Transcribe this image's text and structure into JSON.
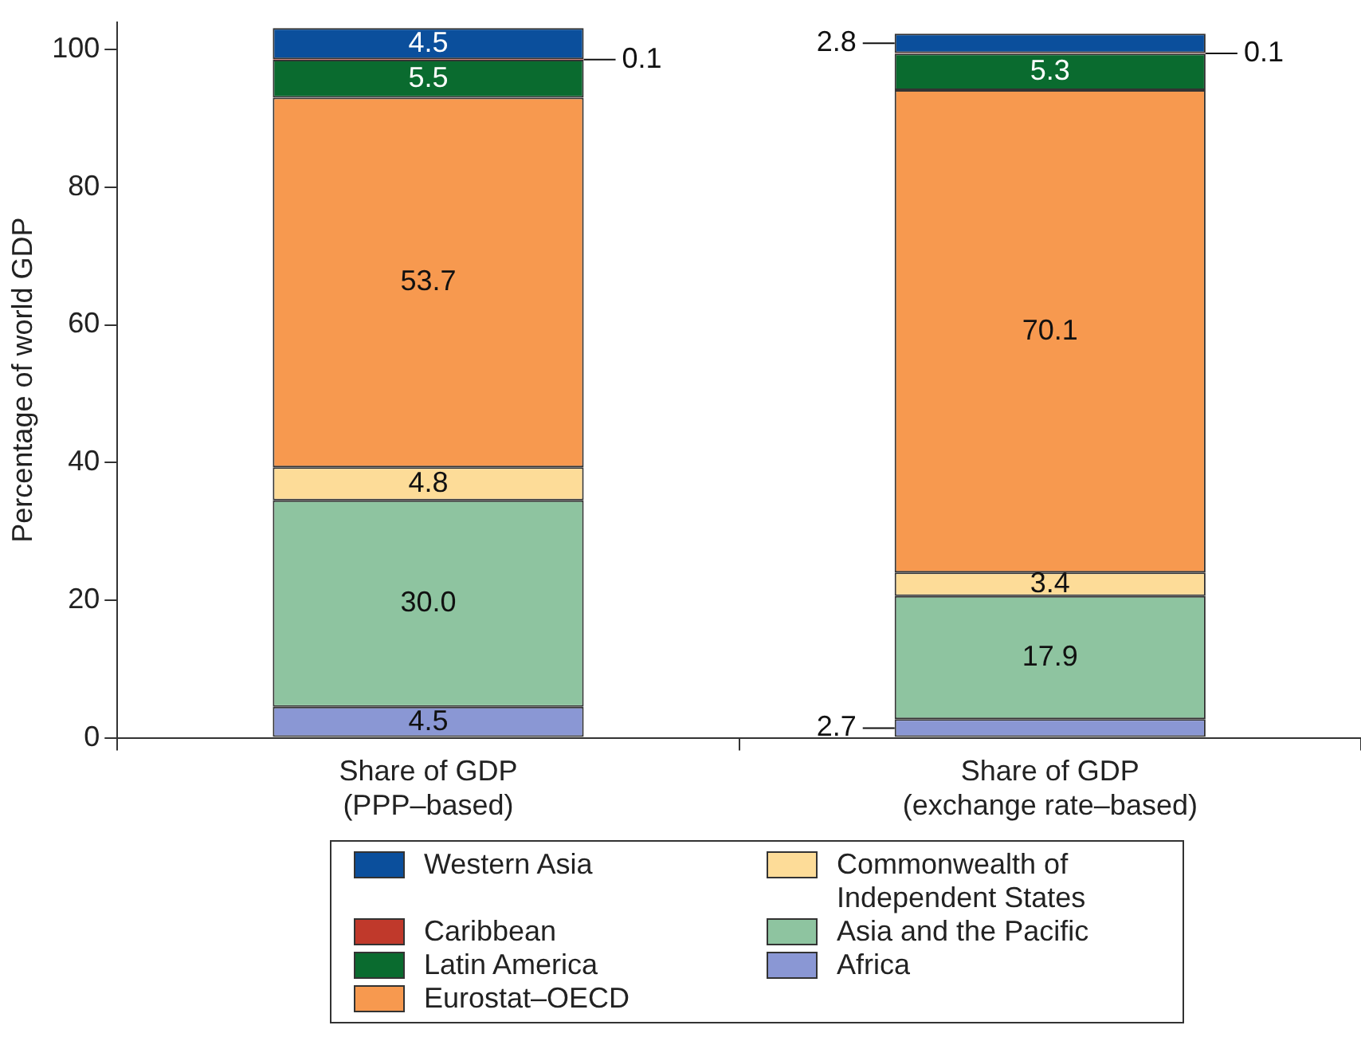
{
  "chart_data": {
    "type": "bar",
    "stacked": true,
    "ylabel": "Percentage of world GDP",
    "categories": [
      "Share of GDP\n(PPP–based)",
      "Share of GDP\n(exchange rate–based)"
    ],
    "ylim": [
      0,
      104
    ],
    "yticks": [
      0,
      20,
      40,
      60,
      80,
      100
    ],
    "grid": false,
    "legend": "bottom",
    "series": [
      {
        "name": "Africa",
        "color": "#8a97d4",
        "values": [
          4.5,
          2.7
        ],
        "value_labels": [
          "4.5",
          "2.7"
        ]
      },
      {
        "name": "Asia and the Pacific",
        "color": "#8ec4a0",
        "values": [
          30.0,
          17.9
        ],
        "value_labels": [
          "30.0",
          "17.9"
        ]
      },
      {
        "name": "Commonwealth of Independent States",
        "color": "#fddc98",
        "values": [
          4.8,
          3.4
        ],
        "value_labels": [
          "4.8",
          "3.4"
        ]
      },
      {
        "name": "Eurostat–OECD",
        "color": "#f7994f",
        "values": [
          53.7,
          70.1
        ],
        "value_labels": [
          "53.7",
          "70.1"
        ]
      },
      {
        "name": "Latin America",
        "color": "#0a6b2f",
        "values": [
          5.5,
          5.3
        ],
        "value_labels": [
          "5.5",
          "5.3"
        ]
      },
      {
        "name": "Caribbean",
        "color": "#c0392b",
        "values": [
          0.1,
          0.1
        ],
        "value_labels": [
          "0.1",
          "0.1"
        ]
      },
      {
        "name": "Western Asia",
        "color": "#0b4f9c",
        "values": [
          4.5,
          2.8
        ],
        "value_labels": [
          "4.5",
          "2.8"
        ]
      }
    ]
  }
}
